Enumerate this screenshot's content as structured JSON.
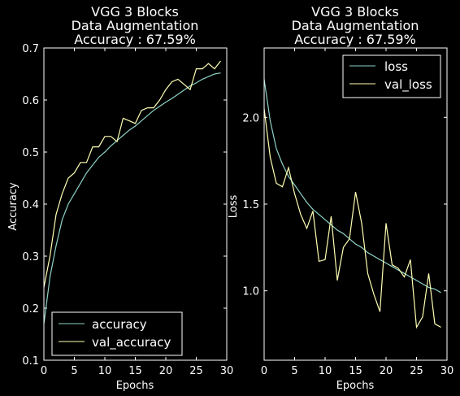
{
  "chart_data": [
    {
      "type": "line",
      "title": [
        "VGG 3 Blocks",
        "Data Augmentation",
        "Accuracy : 67.59%"
      ],
      "xlabel": "Epochs",
      "ylabel": "Accuracy",
      "xlim": [
        0,
        30
      ],
      "ylim": [
        0.1,
        0.7
      ],
      "xticks": [
        "0",
        "5",
        "10",
        "15",
        "20",
        "25",
        "30"
      ],
      "yticks": [
        "0.1",
        "0.2",
        "0.3",
        "0.4",
        "0.5",
        "0.6",
        "0.7"
      ],
      "legend_position": "lower-left",
      "x": [
        0,
        1,
        2,
        3,
        4,
        5,
        6,
        7,
        8,
        9,
        10,
        11,
        12,
        13,
        14,
        15,
        16,
        17,
        18,
        19,
        20,
        21,
        22,
        23,
        24,
        25,
        26,
        27,
        28,
        29
      ],
      "series": [
        {
          "name": "accuracy",
          "color": "#8dd3c7",
          "values": [
            0.17,
            0.26,
            0.32,
            0.37,
            0.4,
            0.42,
            0.44,
            0.46,
            0.475,
            0.49,
            0.5,
            0.512,
            0.522,
            0.532,
            0.542,
            0.55,
            0.56,
            0.57,
            0.58,
            0.588,
            0.596,
            0.603,
            0.611,
            0.619,
            0.627,
            0.633,
            0.64,
            0.645,
            0.65,
            0.652
          ]
        },
        {
          "name": "val_accuracy",
          "color": "#ffffb3",
          "values": [
            0.24,
            0.3,
            0.38,
            0.42,
            0.45,
            0.46,
            0.48,
            0.48,
            0.51,
            0.51,
            0.53,
            0.53,
            0.52,
            0.565,
            0.56,
            0.555,
            0.58,
            0.585,
            0.585,
            0.6,
            0.62,
            0.635,
            0.64,
            0.63,
            0.62,
            0.66,
            0.66,
            0.67,
            0.66,
            0.675
          ]
        }
      ]
    },
    {
      "type": "line",
      "title": [
        "VGG 3 Blocks",
        "Data Augmentation",
        "Accuracy : 67.59%"
      ],
      "xlabel": "Epochs",
      "ylabel": "Loss",
      "xlim": [
        0,
        30
      ],
      "ylim": [
        0.6,
        2.4
      ],
      "xticks": [
        "0",
        "5",
        "10",
        "15",
        "20",
        "25",
        "30"
      ],
      "yticks": [
        "1.0",
        "1.5",
        "2.0"
      ],
      "ytick_values": [
        1.0,
        1.5,
        2.0
      ],
      "legend_position": "top-right",
      "x": [
        0,
        1,
        2,
        3,
        4,
        5,
        6,
        7,
        8,
        9,
        10,
        11,
        12,
        13,
        14,
        15,
        16,
        17,
        18,
        19,
        20,
        21,
        22,
        23,
        24,
        25,
        26,
        27,
        28,
        29
      ],
      "series": [
        {
          "name": "loss",
          "color": "#8dd3c7",
          "values": [
            2.22,
            1.98,
            1.82,
            1.73,
            1.66,
            1.61,
            1.56,
            1.51,
            1.47,
            1.44,
            1.41,
            1.38,
            1.35,
            1.33,
            1.3,
            1.27,
            1.25,
            1.22,
            1.2,
            1.18,
            1.16,
            1.14,
            1.12,
            1.1,
            1.08,
            1.06,
            1.04,
            1.02,
            1.01,
            0.99
          ]
        },
        {
          "name": "val_loss",
          "color": "#ffffb3",
          "values": [
            2.05,
            1.77,
            1.62,
            1.6,
            1.71,
            1.56,
            1.44,
            1.36,
            1.46,
            1.17,
            1.18,
            1.43,
            1.06,
            1.25,
            1.3,
            1.57,
            1.39,
            1.1,
            0.98,
            0.88,
            1.39,
            1.15,
            1.13,
            1.08,
            1.18,
            0.79,
            0.85,
            1.1,
            0.81,
            0.79
          ]
        }
      ]
    }
  ]
}
